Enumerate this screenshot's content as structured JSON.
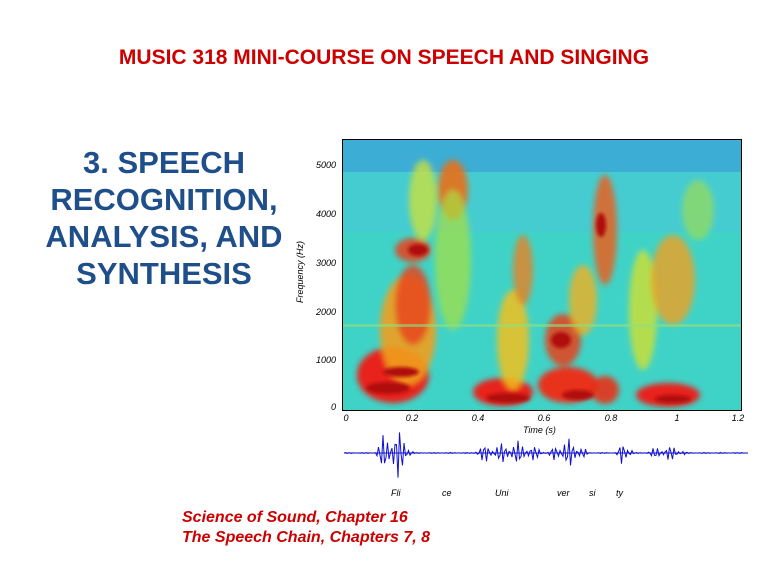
{
  "slide": {
    "title": "MUSIC 318  MINI-COURSE ON SPEECH AND SINGING",
    "heading_lines": [
      "3. SPEECH",
      "RECOGNITION,",
      "ANALYSIS, AND",
      "SYNTHESIS"
    ],
    "references": [
      "Science of Sound, Chapter 16",
      "The Speech Chain, Chapters  7, 8"
    ]
  },
  "figure": {
    "y_axis_label": "Frequency (Hz)",
    "x_axis_label": "Time (s)",
    "y_ticks": [
      "5000",
      "4000",
      "3000",
      "2000",
      "1000",
      "0"
    ],
    "x_ticks": [
      "0",
      "0.2",
      "0.4",
      "0.6",
      "0.8",
      "1",
      "1.2"
    ],
    "syllables": [
      "Fli",
      "ce",
      "Uni",
      "ver",
      "si",
      "ty"
    ]
  }
}
